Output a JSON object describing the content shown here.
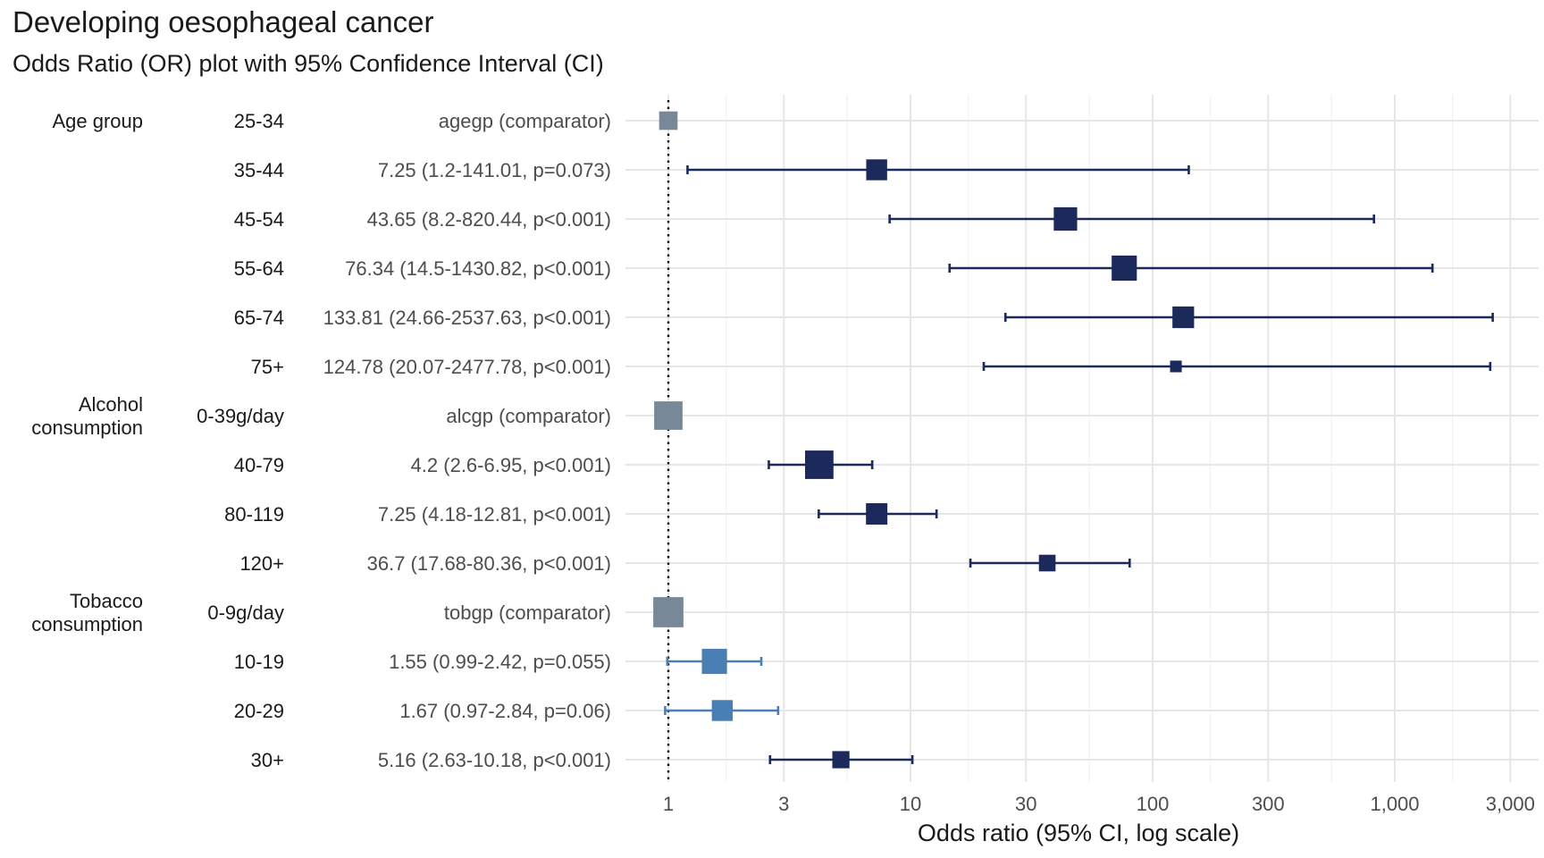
{
  "chart_data": {
    "type": "forest",
    "title": "Developing oesophageal cancer",
    "subtitle": "Odds Ratio (OR) plot with 95% Confidence Interval (CI)",
    "xlabel": "Odds ratio (95% CI, log scale)",
    "x_scale": "log",
    "xlim": [
      0.85,
      3300
    ],
    "reference_line": 1,
    "x_ticks": [
      1,
      3,
      10,
      30,
      100,
      300,
      1000,
      3000
    ],
    "x_tick_labels": [
      "1",
      "3",
      "10",
      "30",
      "100",
      "300",
      "1,000",
      "3,000"
    ],
    "grid": true,
    "colors": {
      "comparator": "#778899",
      "significant": "#1b2a5a",
      "nonsignificant": "#4a7fb5",
      "grid": "#e6e6e6",
      "text": "#1a1a1a",
      "label_text": "#4d4d4d"
    },
    "groups": [
      {
        "label": "Age group",
        "rows": [
          0,
          5
        ]
      },
      {
        "label": "Alcohol consumption",
        "label_lines": [
          "Alcohol",
          "consumption"
        ],
        "rows": [
          6,
          9
        ]
      },
      {
        "label": "Tobacco consumption",
        "label_lines": [
          "Tobacco",
          "consumption"
        ],
        "rows": [
          10,
          13
        ]
      }
    ],
    "rows": [
      {
        "level": "25-34",
        "text": "agegp (comparator)",
        "or": 1,
        "lower": null,
        "upper": null,
        "kind": "comparator",
        "weight": 0.45
      },
      {
        "level": "35-44",
        "text": "7.25 (1.2-141.01, p=0.073)",
        "or": 7.25,
        "lower": 1.2,
        "upper": 141.01,
        "kind": "significant",
        "weight": 0.55
      },
      {
        "level": "45-54",
        "text": "43.65 (8.2-820.44, p<0.001)",
        "or": 43.65,
        "lower": 8.2,
        "upper": 820.44,
        "kind": "significant",
        "weight": 0.65
      },
      {
        "level": "55-64",
        "text": "76.34 (14.5-1430.82, p<0.001)",
        "or": 76.34,
        "lower": 14.5,
        "upper": 1430.82,
        "kind": "significant",
        "weight": 0.72
      },
      {
        "level": "65-74",
        "text": "133.81 (24.66-2537.63, p<0.001)",
        "or": 133.81,
        "lower": 24.66,
        "upper": 2537.63,
        "kind": "significant",
        "weight": 0.58
      },
      {
        "level": "75+",
        "text": "124.78 (20.07-2477.78, p<0.001)",
        "or": 124.78,
        "lower": 20.07,
        "upper": 2477.78,
        "kind": "significant",
        "weight": 0.18
      },
      {
        "level": "0-39g/day",
        "text": "alcgp (comparator)",
        "or": 1,
        "lower": null,
        "upper": null,
        "kind": "comparator",
        "weight": 0.85
      },
      {
        "level": "40-79",
        "text": "4.2 (2.6-6.95, p<0.001)",
        "or": 4.2,
        "lower": 2.6,
        "upper": 6.95,
        "kind": "significant",
        "weight": 0.85
      },
      {
        "level": "80-119",
        "text": "7.25 (4.18-12.81, p<0.001)",
        "or": 7.25,
        "lower": 4.18,
        "upper": 12.81,
        "kind": "significant",
        "weight": 0.57
      },
      {
        "level": "120+",
        "text": "36.7 (17.68-80.36, p<0.001)",
        "or": 36.7,
        "lower": 17.68,
        "upper": 80.36,
        "kind": "significant",
        "weight": 0.38
      },
      {
        "level": "0-9g/day",
        "text": "tobgp (comparator)",
        "or": 1,
        "lower": null,
        "upper": null,
        "kind": "comparator",
        "weight": 0.92
      },
      {
        "level": "10-19",
        "text": "1.55 (0.99-2.42, p=0.055)",
        "or": 1.55,
        "lower": 0.99,
        "upper": 2.42,
        "kind": "nonsignificant",
        "weight": 0.72
      },
      {
        "level": "20-29",
        "text": "1.67 (0.97-2.84, p=0.06)",
        "or": 1.67,
        "lower": 0.97,
        "upper": 2.84,
        "kind": "nonsignificant",
        "weight": 0.55
      },
      {
        "level": "30+",
        "text": "5.16 (2.63-10.18, p<0.001)",
        "or": 5.16,
        "lower": 2.63,
        "upper": 10.18,
        "kind": "significant",
        "weight": 0.4
      }
    ]
  }
}
